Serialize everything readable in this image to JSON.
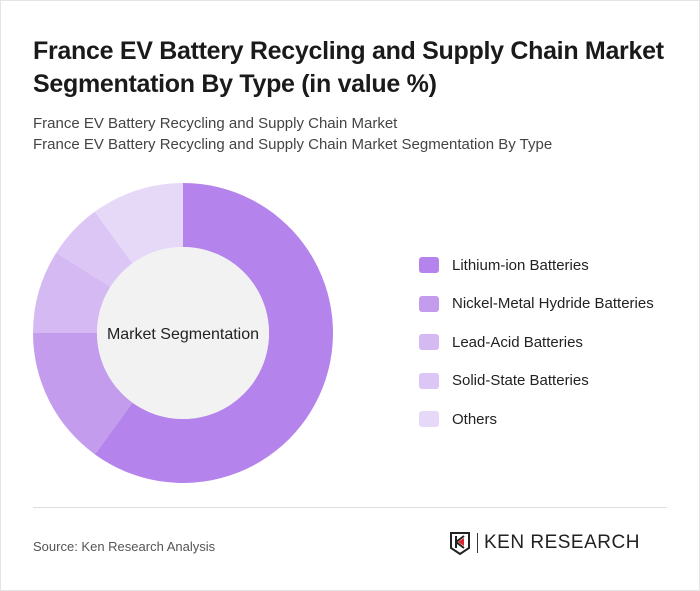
{
  "title": "France EV Battery Recycling and Supply Chain Market Segmentation By Type (in value %)",
  "subtitle1": "France EV Battery Recycling and Supply Chain Market",
  "subtitle2": "France EV Battery Recycling and Supply Chain Market Segmentation By Type",
  "source": "Source: Ken Research Analysis",
  "logo_text": "KEN RESEARCH",
  "chart_data": {
    "type": "pie",
    "donut": true,
    "center_label": "Market Segmentation",
    "legend_position": "right",
    "categories": [
      "Lithium-ion Batteries",
      "Nickel-Metal Hydride Batteries",
      "Lead-Acid Batteries",
      "Solid-State Batteries",
      "Others"
    ],
    "values": [
      60,
      15,
      9,
      6,
      10
    ],
    "colors": [
      "#b583ec",
      "#c49ced",
      "#d5b9f3",
      "#dcc6f5",
      "#e6d9f8"
    ]
  }
}
